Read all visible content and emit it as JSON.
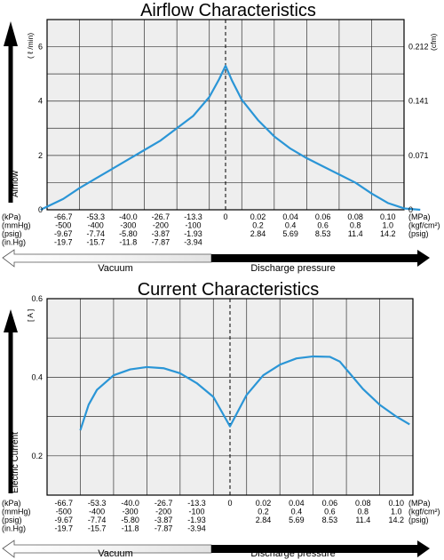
{
  "colors": {
    "curve": "#2a95d6",
    "plot_bg": "#eeeeee",
    "grid": "#333333",
    "frame": "#000000"
  },
  "scale_rows": {
    "units_left": [
      "(kPa)",
      "(mmHg)",
      "(psig)",
      "(in.Hg)"
    ],
    "units_right": [
      "(MPa)",
      "(kgf/cm²)",
      "(psig)"
    ],
    "kpa": [
      "-66.7",
      "-53.3",
      "-40.0",
      "-26.7",
      "-13.3",
      "0",
      "0.02",
      "0.04",
      "0.06",
      "0.08",
      "0.10"
    ],
    "mmhg": [
      "-500",
      "-400",
      "-300",
      "-200",
      "-100",
      "",
      "0.2",
      "0.4",
      "0.6",
      "0.8",
      "1.0"
    ],
    "psig": [
      "-9.67",
      "-7.74",
      "-5.80",
      "-3.87",
      "-1.93",
      "",
      "2.84",
      "5.69",
      "8.53",
      "11.4",
      "14.2"
    ],
    "inhg": [
      "-19.7",
      "-15.7",
      "-11.8",
      "-7.87",
      "-3.94",
      "",
      "",
      "",
      "",
      "",
      ""
    ]
  },
  "arrows": {
    "vacuum": "Vacuum",
    "discharge": "Discharge pressure"
  },
  "chart_data": [
    {
      "type": "line",
      "title": "Airflow Characteristics",
      "ylabel": "Airflow",
      "y_unit_left": "( ℓ /min)",
      "y_unit_right": "(cfm)",
      "x_categories": [
        "-66.7",
        "-53.3",
        "-40.0",
        "-26.7",
        "-13.3",
        "0",
        "0.02",
        "0.04",
        "0.06",
        "0.08",
        "0.10"
      ],
      "ylim": [
        0,
        7
      ],
      "yticks_left": [
        0,
        2,
        4,
        6
      ],
      "yticks_left_labels": [
        "0",
        "2",
        "4",
        "6"
      ],
      "yticks_right": [
        0,
        2,
        4,
        6
      ],
      "yticks_right_labels": [
        "0",
        "0.071",
        "0.141",
        "0.212"
      ],
      "series": [
        {
          "x": [
            -0.7,
            0,
            0.5,
            1,
            1.5,
            2,
            2.5,
            3,
            3.5,
            4,
            4.5,
            4.8,
            5,
            5.2,
            5.5,
            6,
            6.5,
            7,
            7.5,
            8,
            8.5,
            9,
            9.5,
            10,
            10.5,
            11
          ],
          "y": [
            0,
            0.4,
            0.8,
            1.15,
            1.5,
            1.85,
            2.2,
            2.55,
            3.0,
            3.45,
            4.15,
            4.8,
            5.3,
            4.75,
            4.05,
            3.3,
            2.7,
            2.25,
            1.9,
            1.6,
            1.3,
            1.0,
            0.6,
            0.25,
            0.05,
            0
          ]
        }
      ]
    },
    {
      "type": "line",
      "title": "Current Characteristics",
      "ylabel": "Electric Current",
      "y_unit_left": "[ A ]",
      "x_categories": [
        "-66.7",
        "-53.3",
        "-40.0",
        "-26.7",
        "-13.3",
        "0",
        "0.02",
        "0.04",
        "0.06",
        "0.08",
        "0.10"
      ],
      "ylim": [
        0.1,
        0.6
      ],
      "yticks_left": [
        0.2,
        0.4,
        0.6
      ],
      "yticks_left_labels": [
        "0.2",
        "0.4",
        "0.6"
      ],
      "series": [
        {
          "x": [
            0.5,
            0.75,
            1,
            1.5,
            2,
            2.5,
            3,
            3.5,
            4,
            4.5,
            5,
            5.5,
            6,
            6.5,
            7,
            7.5,
            8,
            8.3,
            8.6,
            9,
            9.5,
            10,
            10.4
          ],
          "y": [
            0.265,
            0.33,
            0.368,
            0.405,
            0.42,
            0.426,
            0.423,
            0.41,
            0.385,
            0.35,
            0.275,
            0.355,
            0.405,
            0.432,
            0.448,
            0.453,
            0.452,
            0.44,
            0.41,
            0.37,
            0.33,
            0.3,
            0.28
          ]
        }
      ]
    }
  ]
}
